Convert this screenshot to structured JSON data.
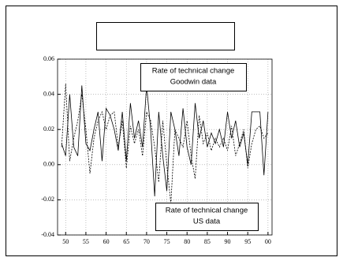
{
  "chart_data": {
    "type": "line",
    "x": [
      1949,
      1950,
      1951,
      1952,
      1953,
      1954,
      1955,
      1956,
      1957,
      1958,
      1959,
      1960,
      1961,
      1962,
      1963,
      1964,
      1965,
      1966,
      1967,
      1968,
      1969,
      1970,
      1971,
      1972,
      1973,
      1974,
      1975,
      1976,
      1977,
      1978,
      1979,
      1980,
      1981,
      1982,
      1983,
      1984,
      1985,
      1986,
      1987,
      1988,
      1989,
      1990,
      1991,
      1992,
      1993,
      1994,
      1995,
      1996,
      1997,
      1998,
      1999,
      2000
    ],
    "series": [
      {
        "color": "#000000",
        "dash": "solid",
        "values": [
          0.012,
          0.005,
          0.04,
          0.01,
          0.005,
          0.045,
          0.012,
          0.008,
          0.02,
          0.03,
          0.002,
          0.032,
          0.028,
          0.02,
          0.008,
          0.03,
          0.002,
          0.035,
          0.015,
          0.025,
          0.01,
          0.045,
          0.02,
          -0.018,
          0.03,
          0.005,
          -0.015,
          0.03,
          0.02,
          0.005,
          0.032,
          0.01,
          0.0,
          0.035,
          0.015,
          0.025,
          0.01,
          0.018,
          0.012,
          0.02,
          0.01,
          0.03,
          0.015,
          0.025,
          0.01,
          0.018,
          0.0,
          0.03,
          0.03,
          0.03,
          -0.006,
          0.03
        ]
      },
      {
        "color": "#000000",
        "dash": "dashed",
        "values": [
          0.01,
          0.046,
          0.002,
          0.015,
          0.025,
          0.04,
          0.02,
          -0.005,
          0.015,
          0.025,
          0.03,
          0.02,
          0.028,
          0.03,
          0.01,
          0.025,
          -0.002,
          0.022,
          0.012,
          0.02,
          0.005,
          0.03,
          0.025,
          0.01,
          -0.01,
          0.025,
          0.0,
          -0.022,
          0.02,
          0.015,
          0.01,
          0.025,
          0.005,
          -0.008,
          0.028,
          0.012,
          0.018,
          0.008,
          0.015,
          0.01,
          0.015,
          0.008,
          0.022,
          0.005,
          0.012,
          0.02,
          -0.002,
          0.012,
          0.02,
          0.022,
          0.015,
          0.018
        ]
      }
    ],
    "xlim": [
      1948,
      2001
    ],
    "xticks": [
      {
        "value": 1950,
        "label": "50"
      },
      {
        "value": 1955,
        "label": "55"
      },
      {
        "value": 1960,
        "label": "60"
      },
      {
        "value": 1965,
        "label": "65"
      },
      {
        "value": 1970,
        "label": "70"
      },
      {
        "value": 1975,
        "label": "75"
      },
      {
        "value": 1980,
        "label": "80"
      },
      {
        "value": 1985,
        "label": "85"
      },
      {
        "value": 1990,
        "label": "90"
      },
      {
        "value": 1995,
        "label": "95"
      },
      {
        "value": 2000,
        "label": "00"
      }
    ],
    "ylim": [
      -0.04,
      0.06
    ],
    "yticks": [
      -0.04,
      -0.02,
      {
        "value": 0,
        "label": "0.00"
      },
      0.02,
      0.04,
      0.06
    ],
    "grid": true,
    "annotations": [
      {
        "lines": [
          "Rate of technical change",
          "Goodwin data"
        ]
      },
      {
        "lines": [
          "Rate of technical change",
          "US data"
        ]
      }
    ]
  }
}
